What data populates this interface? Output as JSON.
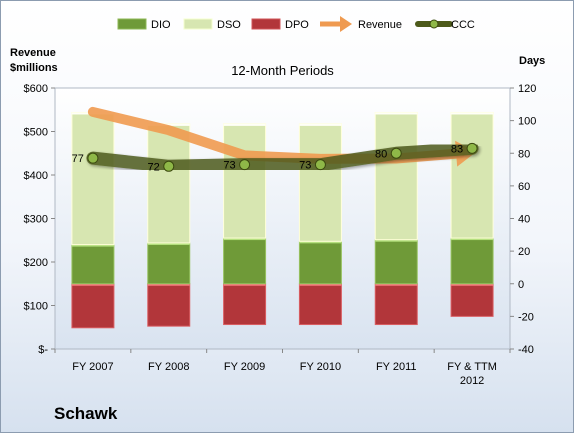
{
  "company": "Schawk",
  "chart_data": {
    "type": "bar",
    "title": "12-Month Periods",
    "left_axis_title": [
      "Revenue",
      "$millions"
    ],
    "right_axis_title": "Days",
    "categories": [
      [
        "FY 2007"
      ],
      [
        "FY 2008"
      ],
      [
        "FY 2009"
      ],
      [
        "FY 2010"
      ],
      [
        "FY 2011"
      ],
      [
        "FY & TTM",
        "2012"
      ]
    ],
    "left_axis": {
      "ylim": [
        0,
        600
      ],
      "ticks": [
        0,
        100,
        200,
        300,
        400,
        500,
        600
      ],
      "tick_labels": [
        "$-",
        "$100",
        "$200",
        "$300",
        "$400",
        "$500",
        "$600"
      ]
    },
    "right_axis": {
      "ylim": [
        -40,
        120
      ],
      "ticks": [
        -40,
        -20,
        0,
        20,
        40,
        60,
        80,
        100,
        120
      ],
      "tick_labels": [
        "-40",
        "-20",
        "0",
        "20",
        "40",
        "60",
        "80",
        "100",
        "120"
      ]
    },
    "legend_position": "top",
    "legend": [
      {
        "name": "DIO",
        "kind": "bar"
      },
      {
        "name": "DSO",
        "kind": "bar"
      },
      {
        "name": "DPO",
        "kind": "bar"
      },
      {
        "name": "Revenue",
        "kind": "arrow"
      },
      {
        "name": "CCC",
        "kind": "line"
      }
    ],
    "series": [
      {
        "name": "DPO",
        "axis": "right",
        "stack": "negative",
        "values": [
          27,
          26,
          25,
          25,
          25,
          20
        ],
        "color": "#b2363a"
      },
      {
        "name": "DIO",
        "axis": "right",
        "stack": "positive",
        "values": [
          24,
          25,
          28,
          26,
          27,
          28
        ],
        "color": "#6f9a38"
      },
      {
        "name": "DSO",
        "axis": "right",
        "stack": "positive",
        "values": [
          81,
          73,
          70,
          72,
          78,
          77
        ],
        "color": "#d7e6b1"
      },
      {
        "name": "Revenue",
        "axis": "left",
        "values": [
          545,
          503,
          445,
          437,
          438,
          452
        ],
        "color": "#ef9a50"
      },
      {
        "name": "CCC",
        "axis": "right",
        "values": [
          77,
          72,
          73,
          73,
          80,
          83
        ],
        "labels": [
          "77",
          "72",
          "73",
          "73",
          "80",
          "83"
        ],
        "color": "#4d5a1a"
      }
    ],
    "grid": false
  }
}
